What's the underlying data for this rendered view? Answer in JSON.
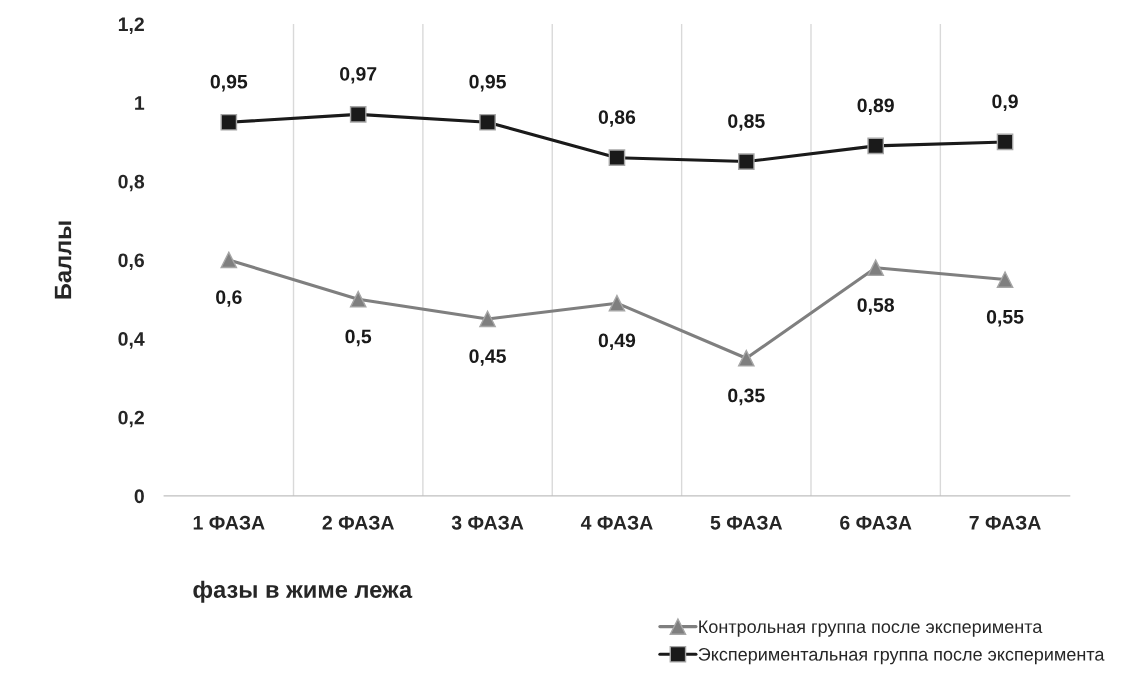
{
  "chart_data": {
    "type": "line",
    "xlabel": "фазы в жиме лежа",
    "ylabel": "Баллы",
    "categories": [
      "1 ФАЗА",
      "2 ФАЗА",
      "3 ФАЗА",
      "4 ФАЗА",
      "5 ФАЗА",
      "6 ФАЗА",
      "7 ФАЗА"
    ],
    "series": [
      {
        "name": "Контрольная группа после эксперимента",
        "color": "#7f7f7f",
        "marker": "triangle",
        "values": [
          0.6,
          0.5,
          0.45,
          0.49,
          0.35,
          0.58,
          0.55
        ],
        "value_labels": [
          "0,6",
          "0,5",
          "0,45",
          "0,49",
          "0,35",
          "0,58",
          "0,55"
        ]
      },
      {
        "name": "Экспериментальная группа после эксперимента",
        "color": "#1a1a1a",
        "marker": "square",
        "values": [
          0.95,
          0.97,
          0.95,
          0.86,
          0.85,
          0.89,
          0.9
        ],
        "value_labels": [
          "0,95",
          "0,97",
          "0,95",
          "0,86",
          "0,85",
          "0,89",
          "0,9"
        ]
      }
    ],
    "ylim": [
      0,
      1.2
    ],
    "yticks": [
      0,
      {
        "value": 0.2,
        "label": "0,2"
      },
      {
        "value": 0.4,
        "label": "0,4"
      },
      {
        "value": 0.6,
        "label": "0,6"
      },
      {
        "value": 0.8,
        "label": "0,8"
      },
      1,
      {
        "value": 1.2,
        "label": "1,2"
      }
    ],
    "grid": "x",
    "legend": "bottom right",
    "line_style": "solid"
  }
}
